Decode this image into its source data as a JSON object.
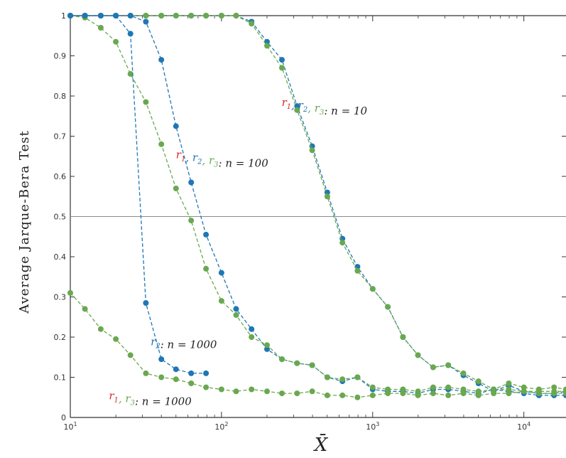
{
  "chart_data": {
    "type": "line",
    "xlabel": "X̄",
    "ylabel": "Average Jarque-Bera Test",
    "xscale": "log",
    "xlim": [
      10,
      19000
    ],
    "ylim": [
      0,
      1
    ],
    "grid": false,
    "reference_line": 0.5,
    "y_ticks": [
      0,
      0.1,
      0.2,
      0.3,
      0.4,
      0.5,
      0.6,
      0.7,
      0.8,
      0.9,
      1
    ],
    "y_tick_labels": [
      "0",
      "0.1",
      "0.2",
      "0.3",
      "0.4",
      "0.5",
      "0.6",
      "0.7",
      "0.8",
      "0.9",
      "1"
    ],
    "x_ticks": [
      10,
      100,
      1000,
      10000
    ],
    "x_tick_labels": [
      {
        "base": "10",
        "exp": "1"
      },
      {
        "base": "10",
        "exp": "2"
      },
      {
        "base": "10",
        "exp": "3"
      },
      {
        "base": "10",
        "exp": "4"
      }
    ],
    "colors": {
      "r1": "#d62728",
      "r2": "#1f77b4",
      "r3": "#6aa84f",
      "axis": "#333333"
    },
    "annotations": [
      {
        "id": "ann-n10",
        "x": 250,
        "y": 0.775,
        "prefix": [
          {
            "t": "r",
            "sub": "1",
            "color": "#d62728"
          },
          {
            "t": "r",
            "sub": "2",
            "color": "#1f77b4"
          },
          {
            "t": "r",
            "sub": "3",
            "color": "#6aa84f"
          }
        ],
        "suffix": ": n = 10"
      },
      {
        "id": "ann-n100",
        "x": 50,
        "y": 0.645,
        "prefix": [
          {
            "t": "r",
            "sub": "1",
            "color": "#d62728"
          },
          {
            "t": "r",
            "sub": "2",
            "color": "#1f77b4"
          },
          {
            "t": "r",
            "sub": "3",
            "color": "#6aa84f"
          }
        ],
        "suffix": ": n = 100"
      },
      {
        "id": "ann-r2-n1000",
        "x": 34,
        "y": 0.18,
        "prefix": [
          {
            "t": "r",
            "sub": "2",
            "color": "#1f77b4"
          }
        ],
        "suffix": ": n = 1000"
      },
      {
        "id": "ann-r13-n1000",
        "x": 18,
        "y": 0.045,
        "prefix": [
          {
            "t": "r",
            "sub": "1",
            "color": "#d62728"
          },
          {
            "t": "r",
            "sub": "3",
            "color": "#6aa84f"
          }
        ],
        "suffix": ": n = 1000"
      }
    ],
    "series": [
      {
        "id": "n10-r2",
        "color": "#1f77b4",
        "x": [
          10,
          12.5,
          15.9,
          20,
          25,
          31.6,
          40,
          50,
          63,
          79,
          100,
          125,
          158,
          200,
          251,
          316,
          398,
          501,
          631,
          794,
          1000,
          1259,
          1585,
          1995,
          2512,
          3162,
          3981,
          5012,
          6310,
          7943,
          10000,
          12589,
          15849,
          19000
        ],
        "y": [
          1,
          1,
          1,
          1,
          1,
          1,
          1,
          1,
          1,
          1,
          1,
          1,
          0.985,
          0.935,
          0.89,
          0.775,
          0.675,
          0.56,
          0.445,
          0.375,
          0.32,
          0.275,
          0.2,
          0.155,
          0.125,
          0.13,
          0.105,
          0.085,
          0.065,
          0.08,
          0.065,
          0.06,
          0.06,
          0.065
        ]
      },
      {
        "id": "n10-r3",
        "color": "#6aa84f",
        "x": [
          10,
          12.5,
          15.9,
          20,
          25,
          31.6,
          40,
          50,
          63,
          79,
          100,
          125,
          158,
          200,
          251,
          316,
          398,
          501,
          631,
          794,
          1000,
          1259,
          1585,
          1995,
          2512,
          3162,
          3981,
          5012,
          6310,
          7943,
          10000,
          12589,
          15849,
          19000
        ],
        "y": [
          1,
          1,
          1,
          1,
          1,
          1,
          1,
          1,
          1,
          1,
          1,
          1,
          0.98,
          0.925,
          0.87,
          0.765,
          0.665,
          0.55,
          0.435,
          0.365,
          0.32,
          0.275,
          0.2,
          0.155,
          0.125,
          0.13,
          0.11,
          0.09,
          0.07,
          0.085,
          0.075,
          0.07,
          0.075,
          0.07
        ]
      },
      {
        "id": "n100-r2",
        "color": "#1f77b4",
        "x": [
          10,
          12.5,
          15.9,
          20,
          25,
          31.6,
          40,
          50,
          63,
          79,
          100,
          125,
          158,
          200,
          251,
          316,
          398,
          501,
          631,
          794,
          1000,
          1259,
          1585,
          1995,
          2512,
          3162,
          3981,
          5012,
          6310,
          7943,
          10000,
          12589,
          15849,
          19000
        ],
        "y": [
          1,
          1,
          1,
          1,
          1,
          0.985,
          0.89,
          0.725,
          0.585,
          0.455,
          0.36,
          0.27,
          0.22,
          0.17,
          0.145,
          0.135,
          0.13,
          0.1,
          0.09,
          0.1,
          0.07,
          0.065,
          0.065,
          0.06,
          0.07,
          0.07,
          0.065,
          0.06,
          0.07,
          0.065,
          0.06,
          0.055,
          0.055,
          0.055
        ]
      },
      {
        "id": "n100-r3",
        "color": "#6aa84f",
        "x": [
          10,
          12.5,
          15.9,
          20,
          25,
          31.6,
          40,
          50,
          63,
          79,
          100,
          125,
          158,
          200,
          251,
          316,
          398,
          501,
          631,
          794,
          1000,
          1259,
          1585,
          1995,
          2512,
          3162,
          3981,
          5012,
          6310,
          7943,
          10000,
          12589,
          15849,
          19000
        ],
        "y": [
          1,
          0.995,
          0.97,
          0.935,
          0.855,
          0.785,
          0.68,
          0.57,
          0.49,
          0.37,
          0.29,
          0.255,
          0.2,
          0.18,
          0.145,
          0.135,
          0.13,
          0.1,
          0.095,
          0.1,
          0.075,
          0.07,
          0.07,
          0.065,
          0.075,
          0.075,
          0.07,
          0.065,
          0.07,
          0.07,
          0.065,
          0.065,
          0.065,
          0.065
        ]
      },
      {
        "id": "n1000-r2",
        "color": "#1f77b4",
        "x": [
          10,
          12.5,
          15.9,
          20,
          25,
          31.6,
          40,
          50,
          63,
          79
        ],
        "y": [
          1,
          1,
          1,
          1,
          0.955,
          0.285,
          0.145,
          0.12,
          0.11,
          0.11
        ]
      },
      {
        "id": "n1000-r3",
        "color": "#6aa84f",
        "x": [
          10,
          12.5,
          15.9,
          20,
          25,
          31.6,
          40,
          50,
          63,
          79,
          100,
          125,
          158,
          200,
          251,
          316,
          398,
          501,
          631,
          794,
          1000,
          1259,
          1585,
          1995,
          2512,
          3162,
          3981,
          5012,
          6310,
          7943,
          10000,
          12589,
          15849,
          19000
        ],
        "y": [
          0.31,
          0.27,
          0.22,
          0.195,
          0.155,
          0.11,
          0.1,
          0.095,
          0.085,
          0.075,
          0.07,
          0.065,
          0.07,
          0.065,
          0.06,
          0.06,
          0.065,
          0.055,
          0.055,
          0.05,
          0.055,
          0.06,
          0.06,
          0.055,
          0.06,
          0.055,
          0.06,
          0.055,
          0.06,
          0.06,
          0.065,
          0.06,
          0.06,
          0.06
        ]
      }
    ]
  }
}
